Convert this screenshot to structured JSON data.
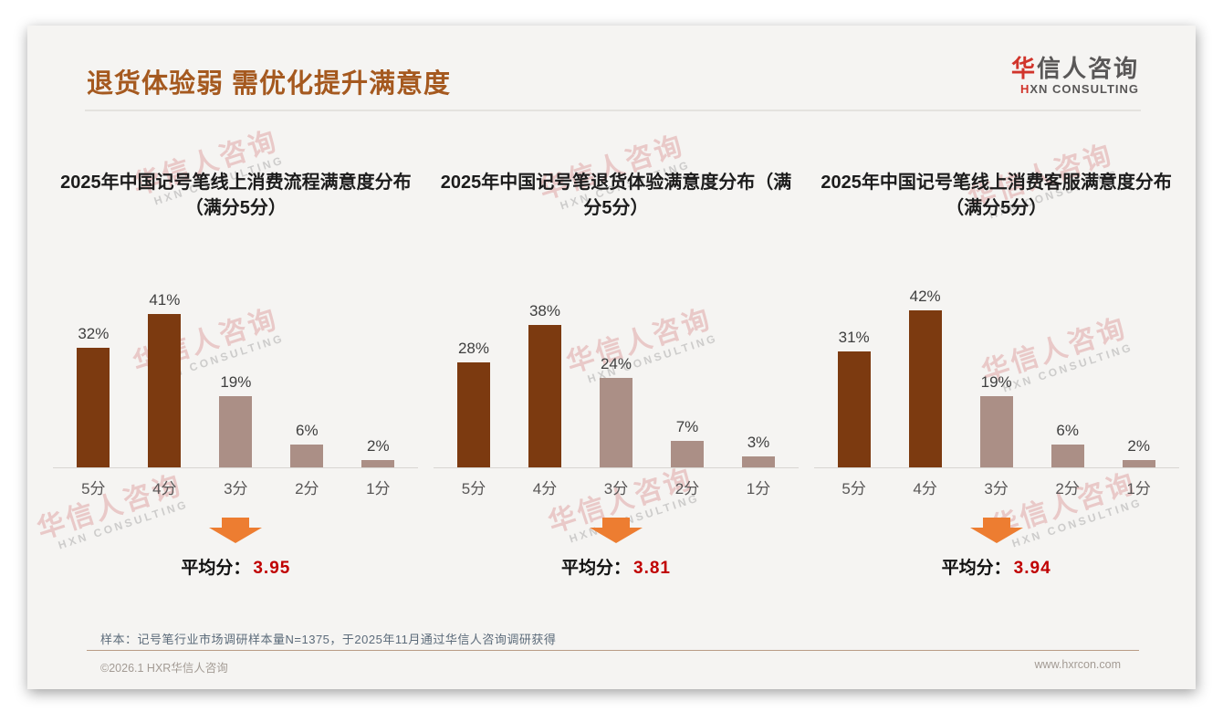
{
  "slide": {
    "title": "退货体验弱 需优化提升满意度",
    "logo": {
      "cn_accent": "华",
      "cn_rest": "信人咨询",
      "en_accent": "H",
      "en_rest": "XN CONSULTING"
    },
    "watermark": {
      "line1": "华信人咨询",
      "line2": "HXN CONSULTING"
    },
    "sample_note": "样本：记号笔行业市场调研样本量N=1375，于2025年11月通过华信人咨询调研获得",
    "footer": {
      "copyright": "©2026.1 HXR华信人咨询",
      "website": "www.hxrcon.com"
    }
  },
  "colors": {
    "title_brown": "#a5591f",
    "bar_dark": "#7c3a10",
    "bar_light": "#ab8f86",
    "accent_red": "#c00000",
    "arrow_orange": "#ed7d31",
    "logo_red": "#d1342b",
    "logo_gray": "#595757",
    "card_bg": "#f5f4f2"
  },
  "chart_data": [
    {
      "type": "bar",
      "title": "2025年中国记号笔线上消费流程满意度分布（满分5分）",
      "categories": [
        "5分",
        "4分",
        "3分",
        "2分",
        "1分"
      ],
      "values": [
        32,
        41,
        19,
        6,
        2
      ],
      "unit": "%",
      "bar_styles": [
        "dark",
        "dark",
        "light",
        "light",
        "light"
      ],
      "average_label": "平均分：",
      "average": "3.95",
      "ylim": [
        0,
        45
      ],
      "grid": false,
      "value_labels": true,
      "legend": "none"
    },
    {
      "type": "bar",
      "title": "2025年中国记号笔退货体验满意度分布（满分5分）",
      "categories": [
        "5分",
        "4分",
        "3分",
        "2分",
        "1分"
      ],
      "values": [
        28,
        38,
        24,
        7,
        3
      ],
      "unit": "%",
      "bar_styles": [
        "dark",
        "dark",
        "light",
        "light",
        "light"
      ],
      "average_label": "平均分：",
      "average": "3.81",
      "ylim": [
        0,
        45
      ],
      "grid": false,
      "value_labels": true,
      "legend": "none"
    },
    {
      "type": "bar",
      "title": "2025年中国记号笔线上消费客服满意度分布（满分5分）",
      "categories": [
        "5分",
        "4分",
        "3分",
        "2分",
        "1分"
      ],
      "values": [
        31,
        42,
        19,
        6,
        2
      ],
      "unit": "%",
      "bar_styles": [
        "dark",
        "dark",
        "light",
        "light",
        "light"
      ],
      "average_label": "平均分：",
      "average": "3.94",
      "ylim": [
        0,
        45
      ],
      "grid": false,
      "value_labels": true,
      "legend": "none"
    }
  ]
}
